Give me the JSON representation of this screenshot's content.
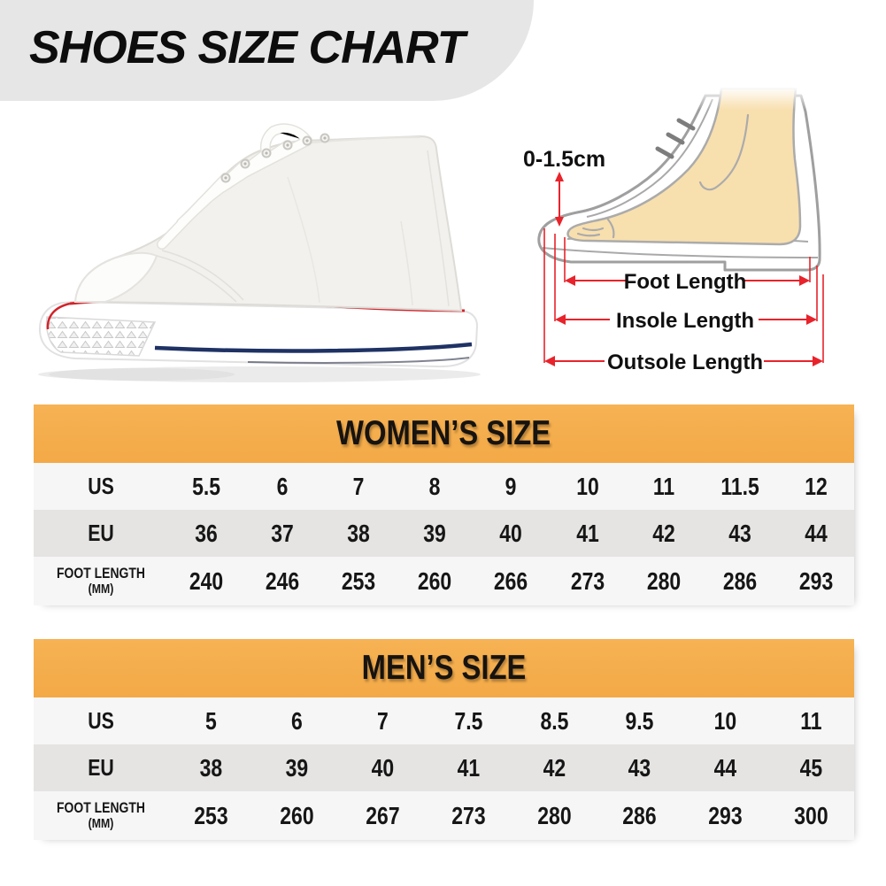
{
  "header": {
    "title": "SHOES SIZE CHART",
    "banner_color": "#e7e6e6",
    "text_color": "#0d0d0d"
  },
  "hero": {
    "sneaker": {
      "description": "white high-top canvas sneaker",
      "stripe_red": "#d2232a",
      "stripe_navy": "#1f3264",
      "canvas_color": "#f2f1ed"
    },
    "diagram": {
      "toe_allowance_label": "0-1.5cm",
      "arrow_labels": [
        "Foot Length",
        "Insole Length",
        "Outsole Length"
      ],
      "arrow_color": "#e8232b",
      "foot_fill": "#f8dfae",
      "outline_color": "#9f9f9f"
    }
  },
  "colors": {
    "banner_orange": "#f5ae4d",
    "row_light": "#f7f6f6",
    "row_dark": "#e5e4e3",
    "text": "#161616"
  },
  "tables": [
    {
      "header": "WOMEN’S SIZE",
      "rows": [
        {
          "label": "US",
          "sublabel": "",
          "values": [
            "5.5",
            "6",
            "7",
            "8",
            "9",
            "10",
            "11",
            "11.5",
            "12"
          ]
        },
        {
          "label": "EU",
          "sublabel": "",
          "values": [
            "36",
            "37",
            "38",
            "39",
            "40",
            "41",
            "42",
            "43",
            "44"
          ]
        },
        {
          "label": "FOOT LENGTH",
          "sublabel": "(MM)",
          "values": [
            "240",
            "246",
            "253",
            "260",
            "266",
            "273",
            "280",
            "286",
            "293"
          ]
        }
      ]
    },
    {
      "header": "MEN’S SIZE",
      "rows": [
        {
          "label": "US",
          "sublabel": "",
          "values": [
            "5",
            "6",
            "7",
            "7.5",
            "8.5",
            "9.5",
            "10",
            "11"
          ]
        },
        {
          "label": "EU",
          "sublabel": "",
          "values": [
            "38",
            "39",
            "40",
            "41",
            "42",
            "43",
            "44",
            "45"
          ]
        },
        {
          "label": "FOOT LENGTH",
          "sublabel": "(MM)",
          "values": [
            "253",
            "260",
            "267",
            "273",
            "280",
            "286",
            "293",
            "300"
          ]
        }
      ]
    }
  ],
  "chart_data": [
    {
      "type": "table",
      "title": "WOMEN'S SIZE",
      "row_headers": [
        "US",
        "EU",
        "FOOT LENGTH (MM)"
      ],
      "rows": [
        [
          "5.5",
          "6",
          "7",
          "8",
          "9",
          "10",
          "11",
          "11.5",
          "12"
        ],
        [
          "36",
          "37",
          "38",
          "39",
          "40",
          "41",
          "42",
          "43",
          "44"
        ],
        [
          "240",
          "246",
          "253",
          "260",
          "266",
          "273",
          "280",
          "286",
          "293"
        ]
      ]
    },
    {
      "type": "table",
      "title": "MEN'S SIZE",
      "row_headers": [
        "US",
        "EU",
        "FOOT LENGTH (MM)"
      ],
      "rows": [
        [
          "5",
          "6",
          "7",
          "7.5",
          "8.5",
          "9.5",
          "10",
          "11"
        ],
        [
          "38",
          "39",
          "40",
          "41",
          "42",
          "43",
          "44",
          "45"
        ],
        [
          "253",
          "260",
          "267",
          "273",
          "280",
          "286",
          "293",
          "300"
        ]
      ]
    }
  ]
}
